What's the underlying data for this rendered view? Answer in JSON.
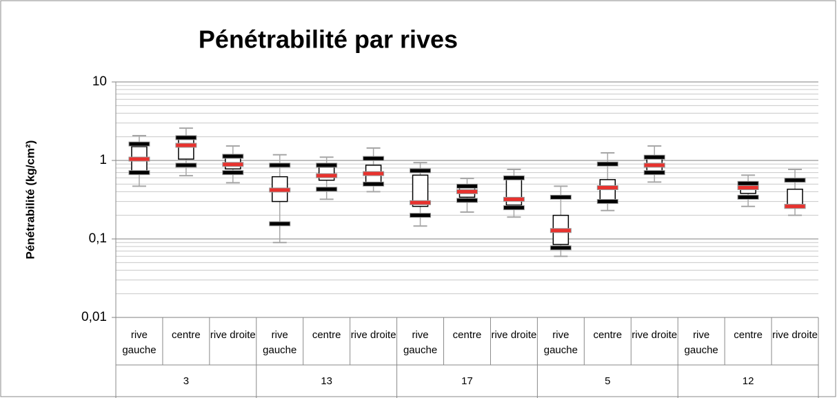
{
  "chart_data": {
    "type": "box",
    "title": "Pénétrabilité par rives",
    "y_label": "Pénétrabilité (kg/cm²)",
    "log_scale": true,
    "grid": true,
    "ylim": [
      0.01,
      10
    ],
    "yticks": [
      {
        "value": 0.01,
        "label": "0,01"
      },
      {
        "value": 0.1,
        "label": "0,1"
      },
      {
        "value": 1,
        "label": "1"
      },
      {
        "value": 10,
        "label": "10"
      }
    ],
    "yminorticks": [
      0.02,
      0.03,
      0.04,
      0.05,
      0.06,
      0.07,
      0.08,
      0.09,
      0.2,
      0.3,
      0.4,
      0.5,
      0.6,
      0.7,
      0.8,
      0.9,
      2,
      3,
      4,
      5,
      6,
      7,
      8,
      9
    ],
    "groups": [
      "3",
      "13",
      "17",
      "5",
      "12"
    ],
    "categories": [
      "rive gauche",
      "centre",
      "rive droite",
      "rive gauche",
      "centre",
      "rive droite",
      "rive gauche",
      "centre",
      "rive droite",
      "rive gauche",
      "centre",
      "rive droite",
      "rive gauche",
      "centre",
      "rive droite"
    ],
    "boxes": {
      "whisker_low": [
        0.47,
        0.64,
        0.52,
        0.09,
        0.32,
        0.4,
        0.146,
        0.22,
        0.19,
        0.06,
        0.23,
        0.53,
        null,
        0.26,
        0.2
      ],
      "low": [
        0.7,
        0.87,
        0.7,
        0.156,
        0.43,
        0.5,
        0.2,
        0.31,
        0.25,
        0.077,
        0.3,
        0.7,
        null,
        0.34,
        0.26
      ],
      "q1": [
        0.7,
        1.04,
        0.78,
        0.3,
        0.56,
        0.52,
        0.26,
        0.34,
        0.27,
        0.085,
        0.3,
        0.71,
        null,
        0.38,
        0.26
      ],
      "median": [
        1.04,
        1.56,
        0.89,
        0.42,
        0.64,
        0.68,
        0.29,
        0.4,
        0.32,
        0.128,
        0.45,
        0.87,
        null,
        0.45,
        0.26
      ],
      "q3": [
        1.5,
        1.95,
        1.13,
        0.62,
        0.82,
        0.87,
        0.65,
        0.47,
        0.6,
        0.2,
        0.57,
        1.05,
        null,
        0.49,
        0.43
      ],
      "high": [
        1.62,
        1.95,
        1.13,
        0.87,
        0.87,
        1.06,
        0.74,
        0.47,
        0.6,
        0.34,
        0.9,
        1.1,
        null,
        0.51,
        0.56
      ],
      "whisker_high": [
        2.07,
        2.58,
        1.53,
        1.18,
        1.1,
        1.44,
        0.94,
        0.59,
        0.77,
        0.47,
        1.25,
        1.53,
        null,
        0.65,
        0.77
      ]
    },
    "colors": {
      "whisker": "#a6a6a6",
      "extreme": "#000000",
      "median": "#e8322e",
      "box": "#000000"
    }
  }
}
